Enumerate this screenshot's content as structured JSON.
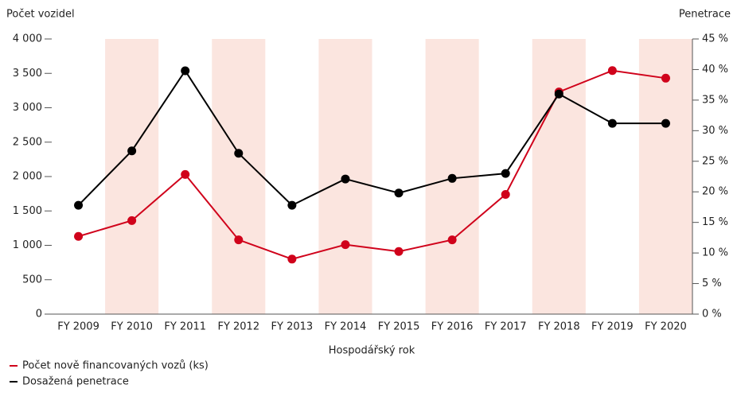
{
  "chart_data": {
    "type": "line",
    "y_axis_label": "Počet vozidel",
    "y2_axis_label": "Penetrace",
    "x_axis_label": "Hospodářský rok",
    "categories": [
      "FY 2009",
      "FY 2010",
      "FY 2011",
      "FY 2012",
      "FY 2013",
      "FY 2014",
      "FY 2015",
      "FY 2016",
      "FY 2017",
      "FY 2018",
      "FY 2019",
      "FY 2020"
    ],
    "series": [
      {
        "name": "Počet nově financovaných vozů (ks)",
        "color": "#d0021b",
        "values": [
          1130,
          1360,
          2030,
          1080,
          800,
          1010,
          910,
          1080,
          1740,
          3230,
          3540,
          3430
        ]
      },
      {
        "name": "Dosažená penetrace",
        "color": "#000000",
        "axis": "y2",
        "values": [
          17.8,
          26.7,
          39.8,
          26.3,
          17.8,
          22.1,
          19.8,
          22.2,
          23.0,
          36.0,
          31.2,
          31.2
        ]
      }
    ],
    "ylim": [
      0,
      4000
    ],
    "yticks": [
      0,
      500,
      {
        "value": 1000,
        "label": "1 000"
      },
      {
        "value": 1500,
        "label": "1 500"
      },
      {
        "value": 2000,
        "label": "2 000"
      },
      {
        "value": 2500,
        "label": "2 500"
      },
      {
        "value": 3000,
        "label": "3 000"
      },
      {
        "value": 3500,
        "label": "3 500"
      },
      {
        "value": 4000,
        "label": "4 000"
      }
    ],
    "y2lim": [
      0,
      45
    ],
    "y2ticks": [
      {
        "value": 0,
        "label": "0 %"
      },
      {
        "value": 5,
        "label": "5 %"
      },
      {
        "value": 10,
        "label": "10 %"
      },
      {
        "value": 15,
        "label": "15 %"
      },
      {
        "value": 20,
        "label": "20 %"
      },
      {
        "value": 25,
        "label": "25 %"
      },
      {
        "value": 30,
        "label": "30 %"
      },
      {
        "value": 35,
        "label": "35 %"
      },
      {
        "value": 40,
        "label": "40 %"
      },
      {
        "value": 45,
        "label": "45 %"
      }
    ],
    "band_color": "#fbe5df"
  }
}
